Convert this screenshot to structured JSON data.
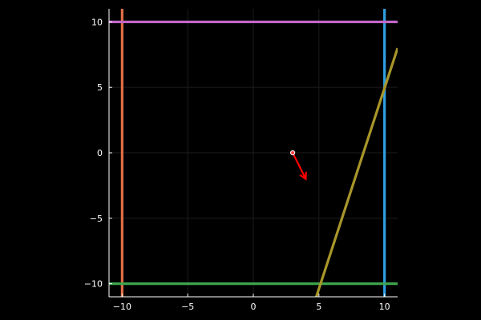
{
  "chart_data": {
    "type": "line",
    "title": "",
    "xlabel": "",
    "ylabel": "",
    "xlim": [
      -11,
      11
    ],
    "ylim": [
      -11,
      11
    ],
    "grid": true,
    "legend": "none",
    "background": "#000000",
    "axis_color": "#ffffff",
    "grid_color": "#1c1c1c",
    "xticks": [
      -10,
      -5,
      0,
      5,
      10
    ],
    "yticks": [
      -10,
      -5,
      0,
      5,
      10
    ],
    "xtick_labels": [
      "−10",
      "−5",
      "0",
      "5",
      "10"
    ],
    "ytick_labels": [
      "−10",
      "−5",
      "0",
      "5",
      "10"
    ],
    "series": [
      {
        "color": "#2f9fe0",
        "x": [
          10,
          10
        ],
        "y": [
          -11,
          11
        ]
      },
      {
        "color": "#e26f46",
        "x": [
          -10,
          -10
        ],
        "y": [
          -11,
          11
        ]
      },
      {
        "color": "#3da44d",
        "x": [
          -11,
          11
        ],
        "y": [
          -10,
          -10
        ]
      },
      {
        "color": "#c066c8",
        "x": [
          -11,
          11
        ],
        "y": [
          10,
          10
        ]
      },
      {
        "color": "#a8962a",
        "x": [
          4.8,
          11
        ],
        "y": [
          -11,
          8
        ]
      }
    ],
    "marker": {
      "x": 3,
      "y": 0,
      "color": "#ff4040"
    },
    "arrow": {
      "from": [
        3,
        0
      ],
      "to": [
        4,
        -2
      ],
      "color": "#ff0000"
    }
  }
}
